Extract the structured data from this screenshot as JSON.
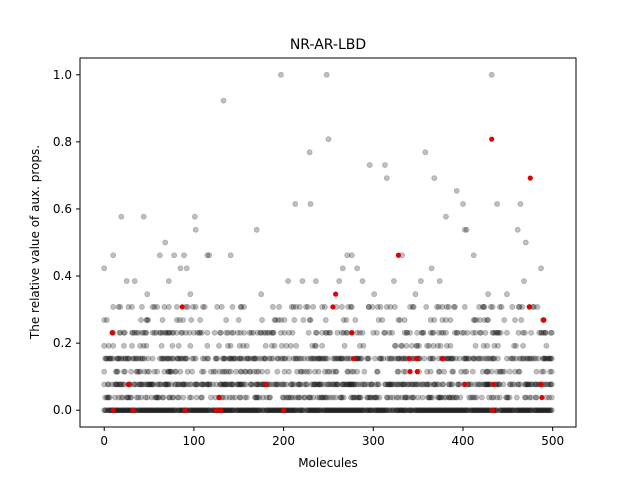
{
  "chart_data": {
    "type": "scatter",
    "title": "NR-AR-LBD",
    "xlabel": "Molecules",
    "ylabel": "The relative value of aux. props.",
    "xlim": [
      -27,
      526
    ],
    "ylim": [
      -0.05,
      1.05
    ],
    "x_ticks": [
      0,
      100,
      200,
      300,
      400,
      500
    ],
    "y_ticks": [
      0.0,
      0.2,
      0.4,
      0.6,
      0.8,
      1.0
    ],
    "x_tick_labels": [
      "0",
      "100",
      "200",
      "300",
      "400",
      "500"
    ],
    "y_tick_labels": [
      "0.0",
      "0.2",
      "0.4",
      "0.6",
      "0.8",
      "1.0"
    ],
    "n_points": 500,
    "colors": {
      "background_points": "#000000",
      "highlight_points": "#e00000"
    },
    "series": [
      {
        "marker": "grey-transparent",
        "level_rows": [
          {
            "y": 0.0,
            "density": 0.95
          },
          {
            "y": 0.038,
            "density": 0.35
          },
          {
            "y": 0.077,
            "density": 0.55
          },
          {
            "y": 0.115,
            "density": 0.2
          },
          {
            "y": 0.154,
            "density": 0.5
          },
          {
            "y": 0.192,
            "density": 0.12
          },
          {
            "y": 0.231,
            "density": 0.25
          },
          {
            "y": 0.269,
            "density": 0.1
          },
          {
            "y": 0.308,
            "density": 0.12
          }
        ],
        "points": [
          [
            0,
            0.423
          ],
          [
            10,
            0.462
          ],
          [
            19,
            0.577
          ],
          [
            25,
            0.385
          ],
          [
            34,
            0.385
          ],
          [
            44,
            0.577
          ],
          [
            48,
            0.346
          ],
          [
            56,
            0.308
          ],
          [
            62,
            0.462
          ],
          [
            68,
            0.5
          ],
          [
            72,
            0.385
          ],
          [
            78,
            0.462
          ],
          [
            85,
            0.423
          ],
          [
            89,
            0.462
          ],
          [
            92,
            0.423
          ],
          [
            96,
            0.346
          ],
          [
            101,
            0.577
          ],
          [
            102,
            0.538
          ],
          [
            115,
            0.462
          ],
          [
            117,
            0.462
          ],
          [
            133,
            0.923
          ],
          [
            141,
            0.462
          ],
          [
            153,
            0.308
          ],
          [
            170,
            0.538
          ],
          [
            175,
            0.346
          ],
          [
            195,
            0.308
          ],
          [
            197,
            1.0
          ],
          [
            205,
            0.385
          ],
          [
            213,
            0.615
          ],
          [
            221,
            0.385
          ],
          [
            229,
            0.769
          ],
          [
            230,
            0.615
          ],
          [
            236,
            0.385
          ],
          [
            248,
            1.0
          ],
          [
            250,
            0.808
          ],
          [
            262,
            0.385
          ],
          [
            266,
            0.423
          ],
          [
            271,
            0.462
          ],
          [
            276,
            0.462
          ],
          [
            282,
            0.423
          ],
          [
            288,
            0.385
          ],
          [
            295,
            0.308
          ],
          [
            296,
            0.731
          ],
          [
            301,
            0.346
          ],
          [
            313,
            0.731
          ],
          [
            315,
            0.692
          ],
          [
            323,
            0.385
          ],
          [
            332,
            0.462
          ],
          [
            341,
            0.308
          ],
          [
            347,
            0.346
          ],
          [
            353,
            0.385
          ],
          [
            358,
            0.769
          ],
          [
            365,
            0.423
          ],
          [
            368,
            0.692
          ],
          [
            374,
            0.385
          ],
          [
            381,
            0.577
          ],
          [
            391,
            0.308
          ],
          [
            393,
            0.654
          ],
          [
            400,
            0.615
          ],
          [
            402,
            0.538
          ],
          [
            404,
            0.538
          ],
          [
            412,
            0.462
          ],
          [
            423,
            0.308
          ],
          [
            428,
            0.346
          ],
          [
            432,
            1.0
          ],
          [
            438,
            0.615
          ],
          [
            449,
            0.346
          ],
          [
            455,
            0.308
          ],
          [
            461,
            0.538
          ],
          [
            464,
            0.615
          ],
          [
            468,
            0.385
          ],
          [
            470,
            0.5
          ],
          [
            478,
            0.308
          ],
          [
            487,
            0.423
          ],
          [
            492,
            0.231
          ]
        ]
      },
      {
        "marker": "red",
        "points": [
          [
            9,
            0.231
          ],
          [
            10,
            0.0
          ],
          [
            27,
            0.077
          ],
          [
            32,
            0.0
          ],
          [
            87,
            0.308
          ],
          [
            90,
            0.0
          ],
          [
            125,
            0.0
          ],
          [
            128,
            0.038
          ],
          [
            130,
            0.0
          ],
          [
            180,
            0.077
          ],
          [
            255,
            0.308
          ],
          [
            258,
            0.346
          ],
          [
            276,
            0.231
          ],
          [
            278,
            0.154
          ],
          [
            328,
            0.462
          ],
          [
            340,
            0.154
          ],
          [
            341,
            0.115
          ],
          [
            348,
            0.154
          ],
          [
            349,
            0.115
          ],
          [
            377,
            0.154
          ],
          [
            402,
            0.077
          ],
          [
            432,
            0.808
          ],
          [
            434,
            0.077
          ],
          [
            474,
            0.308
          ],
          [
            475,
            0.692
          ],
          [
            487,
            0.077
          ],
          [
            488,
            0.038
          ],
          [
            490,
            0.269
          ],
          [
            433,
            0.0
          ],
          [
            200,
            0.0
          ]
        ]
      }
    ]
  }
}
